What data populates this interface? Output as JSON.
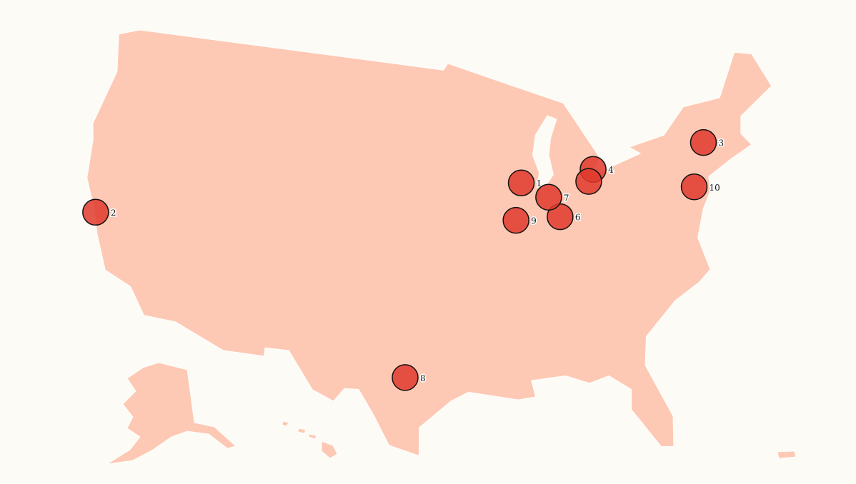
{
  "map": {
    "region": "United States",
    "projection": "albers-usa",
    "colors": {
      "background": "#fdfbf6",
      "land": "#fdc9b4",
      "borders": "#ffffff",
      "marker": "#e03a2d",
      "marker_stroke": "#111111"
    }
  },
  "markers": [
    {
      "label": "1",
      "lat": 42.0,
      "lon": -89.0
    },
    {
      "label": "2",
      "lat": 37.77,
      "lon": -122.42
    },
    {
      "label": "3",
      "lat": 42.65,
      "lon": -73.75
    },
    {
      "label": "4",
      "lat": 42.33,
      "lon": -83.05
    },
    {
      "label": "",
      "lat": 41.65,
      "lon": -83.54
    },
    {
      "label": "6",
      "lat": 39.77,
      "lon": -86.16
    },
    {
      "label": "7",
      "lat": 41.0,
      "lon": -86.9
    },
    {
      "label": "8",
      "lat": 30.6,
      "lon": -98.2
    },
    {
      "label": "9",
      "lat": 39.8,
      "lon": -89.65
    },
    {
      "label": "10",
      "lat": 40.2,
      "lon": -75.3
    }
  ]
}
